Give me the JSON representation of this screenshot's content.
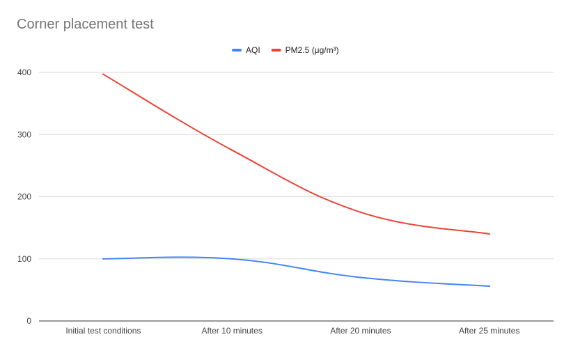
{
  "chart_data": {
    "type": "line",
    "title": "Corner placement test",
    "categories": [
      "Initial test conditions",
      "After 10 minutes",
      "After 20 minutes",
      "After 25 minutes"
    ],
    "series": [
      {
        "name": "AQI",
        "color": "#4285f4",
        "values": [
          100,
          100,
          70,
          56
        ]
      },
      {
        "name": "PM2.5 (μg/m³)",
        "color": "#ea4335",
        "values": [
          397,
          275,
          175,
          140
        ]
      }
    ],
    "ylim": [
      0,
      400
    ],
    "yticks": [
      0,
      100,
      200,
      300,
      400
    ],
    "grid": true,
    "legend": "top-center",
    "xlabel": "",
    "ylabel": ""
  }
}
